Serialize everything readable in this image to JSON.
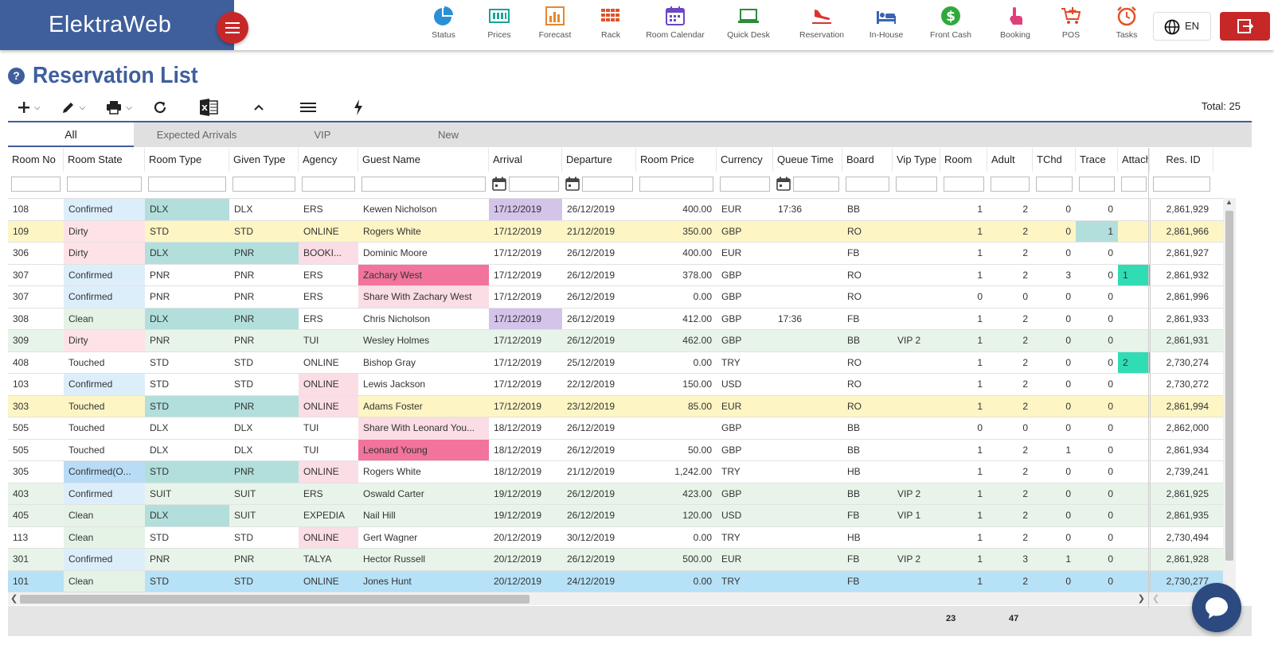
{
  "app": {
    "brand": "ElektraWeb"
  },
  "nav": [
    {
      "label": "Status",
      "icon": "pie-chart-icon",
      "color": "#2a8fd6"
    },
    {
      "label": "Prices",
      "icon": "price-list-icon",
      "color": "#1aa39a"
    },
    {
      "label": "Forecast",
      "icon": "bar-chart-icon",
      "color": "#e8872b"
    },
    {
      "label": "Rack",
      "icon": "rack-grid-icon",
      "color": "#e0522a"
    },
    {
      "label": "Room Calendar",
      "icon": "calendar-icon",
      "color": "#6b48c2"
    },
    {
      "label": "Quick Desk",
      "icon": "laptop-icon",
      "color": "#2e8b3a"
    },
    {
      "label": "Reservation",
      "icon": "plane-landing-icon",
      "color": "#d9332b"
    },
    {
      "label": "In-House",
      "icon": "bed-icon",
      "color": "#3b62b5"
    },
    {
      "label": "Front Cash",
      "icon": "dollar-icon",
      "color": "#2eaa3c"
    },
    {
      "label": "Booking",
      "icon": "touch-icon",
      "color": "#e0407a"
    },
    {
      "label": "POS",
      "icon": "cart-icon",
      "color": "#e04a2a"
    },
    {
      "label": "Tasks",
      "icon": "alarm-clock-icon",
      "color": "#e0522a"
    }
  ],
  "header": {
    "language": "EN"
  },
  "page": {
    "title": "Reservation List",
    "total": "Total: 25"
  },
  "tabs": [
    "All",
    "Expected Arrivals",
    "VIP",
    "New"
  ],
  "columns": [
    "Room No",
    "Room State",
    "Room Type",
    "Given Type",
    "Agency",
    "Guest Name",
    "Arrival",
    "Departure",
    "Room Price",
    "Currency",
    "Queue Time",
    "Board",
    "Vip Type",
    "Room",
    "Adult",
    "TChd",
    "Trace",
    "Attach",
    "Res. ID"
  ],
  "rows": [
    {
      "room_no": "108",
      "state": "Confirmed",
      "type": "DLX",
      "given": "DLX",
      "agency": "ERS",
      "guest": "Kewen Nicholson",
      "arrival": "17/12/2019",
      "departure": "26/12/2019",
      "price": "400.00",
      "currency": "EUR",
      "queue": "17:36",
      "board": "BB",
      "vip": "",
      "room": "1",
      "adult": "2",
      "tchd": "0",
      "trace": "0",
      "attach": "",
      "resid": "2,861,929"
    },
    {
      "room_no": "109",
      "state": "Dirty",
      "type": "STD",
      "given": "STD",
      "agency": "ONLINE",
      "guest": "Rogers White",
      "arrival": "17/12/2019",
      "departure": "21/12/2019",
      "price": "350.00",
      "currency": "GBP",
      "queue": "",
      "board": "RO",
      "vip": "",
      "room": "1",
      "adult": "2",
      "tchd": "0",
      "trace": "1",
      "attach": "",
      "resid": "2,861,966"
    },
    {
      "room_no": "306",
      "state": "Dirty",
      "type": "DLX",
      "given": "PNR",
      "agency": "BOOKI...",
      "guest": "Dominic Moore",
      "arrival": "17/12/2019",
      "departure": "26/12/2019",
      "price": "400.00",
      "currency": "EUR",
      "queue": "",
      "board": "FB",
      "vip": "",
      "room": "1",
      "adult": "2",
      "tchd": "0",
      "trace": "0",
      "attach": "",
      "resid": "2,861,927"
    },
    {
      "room_no": "307",
      "state": "Confirmed",
      "type": "PNR",
      "given": "PNR",
      "agency": "ERS",
      "guest": "Zachary West",
      "arrival": "17/12/2019",
      "departure": "26/12/2019",
      "price": "378.00",
      "currency": "GBP",
      "queue": "",
      "board": "RO",
      "vip": "",
      "room": "1",
      "adult": "2",
      "tchd": "3",
      "trace": "0",
      "attach": "1",
      "resid": "2,861,932"
    },
    {
      "room_no": "307",
      "state": "Confirmed",
      "type": "PNR",
      "given": "PNR",
      "agency": "ERS",
      "guest": "Share With Zachary West",
      "arrival": "17/12/2019",
      "departure": "26/12/2019",
      "price": "0.00",
      "currency": "GBP",
      "queue": "",
      "board": "RO",
      "vip": "",
      "room": "0",
      "adult": "0",
      "tchd": "0",
      "trace": "0",
      "attach": "",
      "resid": "2,861,996"
    },
    {
      "room_no": "308",
      "state": "Clean",
      "type": "DLX",
      "given": "PNR",
      "agency": "ERS",
      "guest": "Chris Nicholson",
      "arrival": "17/12/2019",
      "departure": "26/12/2019",
      "price": "412.00",
      "currency": "GBP",
      "queue": "17:36",
      "board": "FB",
      "vip": "",
      "room": "1",
      "adult": "2",
      "tchd": "0",
      "trace": "0",
      "attach": "",
      "resid": "2,861,933"
    },
    {
      "room_no": "309",
      "state": "Dirty",
      "type": "PNR",
      "given": "PNR",
      "agency": "TUI",
      "guest": "Wesley Holmes",
      "arrival": "17/12/2019",
      "departure": "26/12/2019",
      "price": "462.00",
      "currency": "GBP",
      "queue": "",
      "board": "BB",
      "vip": "VIP 2",
      "room": "1",
      "adult": "2",
      "tchd": "0",
      "trace": "0",
      "attach": "",
      "resid": "2,861,931"
    },
    {
      "room_no": "408",
      "state": "Touched",
      "type": "STD",
      "given": "STD",
      "agency": "ONLINE",
      "guest": "Bishop Gray",
      "arrival": "17/12/2019",
      "departure": "25/12/2019",
      "price": "0.00",
      "currency": "TRY",
      "queue": "",
      "board": "RO",
      "vip": "",
      "room": "1",
      "adult": "2",
      "tchd": "0",
      "trace": "0",
      "attach": "2",
      "resid": "2,730,274"
    },
    {
      "room_no": "103",
      "state": "Confirmed",
      "type": "STD",
      "given": "STD",
      "agency": "ONLINE",
      "guest": "Lewis Jackson",
      "arrival": "17/12/2019",
      "departure": "22/12/2019",
      "price": "150.00",
      "currency": "USD",
      "queue": "",
      "board": "RO",
      "vip": "",
      "room": "1",
      "adult": "2",
      "tchd": "0",
      "trace": "0",
      "attach": "",
      "resid": "2,730,272"
    },
    {
      "room_no": "303",
      "state": "Touched",
      "type": "STD",
      "given": "PNR",
      "agency": "ONLINE",
      "guest": "Adams Foster",
      "arrival": "17/12/2019",
      "departure": "23/12/2019",
      "price": "85.00",
      "currency": "EUR",
      "queue": "",
      "board": "RO",
      "vip": "",
      "room": "1",
      "adult": "2",
      "tchd": "0",
      "trace": "0",
      "attach": "",
      "resid": "2,861,994"
    },
    {
      "room_no": "505",
      "state": "Touched",
      "type": "DLX",
      "given": "DLX",
      "agency": "TUI",
      "guest": "Share With Leonard You...",
      "arrival": "18/12/2019",
      "departure": "26/12/2019",
      "price": "",
      "currency": "GBP",
      "queue": "",
      "board": "BB",
      "vip": "",
      "room": "0",
      "adult": "0",
      "tchd": "0",
      "trace": "0",
      "attach": "",
      "resid": "2,862,000"
    },
    {
      "room_no": "505",
      "state": "Touched",
      "type": "DLX",
      "given": "DLX",
      "agency": "TUI",
      "guest": "Leonard Young",
      "arrival": "18/12/2019",
      "departure": "26/12/2019",
      "price": "50.00",
      "currency": "GBP",
      "queue": "",
      "board": "BB",
      "vip": "",
      "room": "1",
      "adult": "2",
      "tchd": "1",
      "trace": "0",
      "attach": "",
      "resid": "2,861,934"
    },
    {
      "room_no": "305",
      "state": "Confirmed(O...",
      "type": "STD",
      "given": "PNR",
      "agency": "ONLINE",
      "guest": "Rogers White",
      "arrival": "18/12/2019",
      "departure": "21/12/2019",
      "price": "1,242.00",
      "currency": "TRY",
      "queue": "",
      "board": "HB",
      "vip": "",
      "room": "1",
      "adult": "2",
      "tchd": "0",
      "trace": "0",
      "attach": "",
      "resid": "2,739,241"
    },
    {
      "room_no": "403",
      "state": "Confirmed",
      "type": "SUIT",
      "given": "SUIT",
      "agency": "ERS",
      "guest": "Oswald Carter",
      "arrival": "19/12/2019",
      "departure": "26/12/2019",
      "price": "423.00",
      "currency": "GBP",
      "queue": "",
      "board": "BB",
      "vip": "VIP 2",
      "room": "1",
      "adult": "2",
      "tchd": "0",
      "trace": "0",
      "attach": "",
      "resid": "2,861,925"
    },
    {
      "room_no": "405",
      "state": "Clean",
      "type": "DLX",
      "given": "SUIT",
      "agency": "EXPEDIA",
      "guest": "Nail Hill",
      "arrival": "19/12/2019",
      "departure": "26/12/2019",
      "price": "120.00",
      "currency": "USD",
      "queue": "",
      "board": "FB",
      "vip": "VIP 1",
      "room": "1",
      "adult": "2",
      "tchd": "0",
      "trace": "0",
      "attach": "",
      "resid": "2,861,935"
    },
    {
      "room_no": "113",
      "state": "Clean",
      "type": "STD",
      "given": "STD",
      "agency": "ONLINE",
      "guest": "Gert Wagner",
      "arrival": "20/12/2019",
      "departure": "30/12/2019",
      "price": "0.00",
      "currency": "TRY",
      "queue": "",
      "board": "HB",
      "vip": "",
      "room": "1",
      "adult": "2",
      "tchd": "0",
      "trace": "0",
      "attach": "",
      "resid": "2,730,494"
    },
    {
      "room_no": "301",
      "state": "Confirmed",
      "type": "PNR",
      "given": "PNR",
      "agency": "TALYA",
      "guest": "Hector Russell",
      "arrival": "20/12/2019",
      "departure": "26/12/2019",
      "price": "500.00",
      "currency": "EUR",
      "queue": "",
      "board": "FB",
      "vip": "VIP 2",
      "room": "1",
      "adult": "3",
      "tchd": "1",
      "trace": "0",
      "attach": "",
      "resid": "2,861,928"
    },
    {
      "room_no": "101",
      "state": "Clean",
      "type": "STD",
      "given": "STD",
      "agency": "ONLINE",
      "guest": "Jones Hunt",
      "arrival": "20/12/2019",
      "departure": "24/12/2019",
      "price": "0.00",
      "currency": "TRY",
      "queue": "",
      "board": "FB",
      "vip": "",
      "room": "1",
      "adult": "2",
      "tchd": "0",
      "trace": "0",
      "attach": "",
      "resid": "2,730,277"
    }
  ],
  "footer": {
    "room_total": "23",
    "adult_total": "47"
  },
  "colors": {
    "accent": "#3f5f9c",
    "danger": "#c62828",
    "state_confirmed": "#ddeefb",
    "state_dirty": "#fde3e7",
    "state_clean": "#e5f3e6",
    "teal": "#b2dfdb",
    "pink": "#fbdde5",
    "hotpink": "#f2739b",
    "lavender": "#d4c4ea",
    "row_yellow": "#fdf5c4",
    "row_green": "#e8f4ea",
    "row_blue": "#b7e1f7",
    "mint": "#2fdcb4"
  }
}
